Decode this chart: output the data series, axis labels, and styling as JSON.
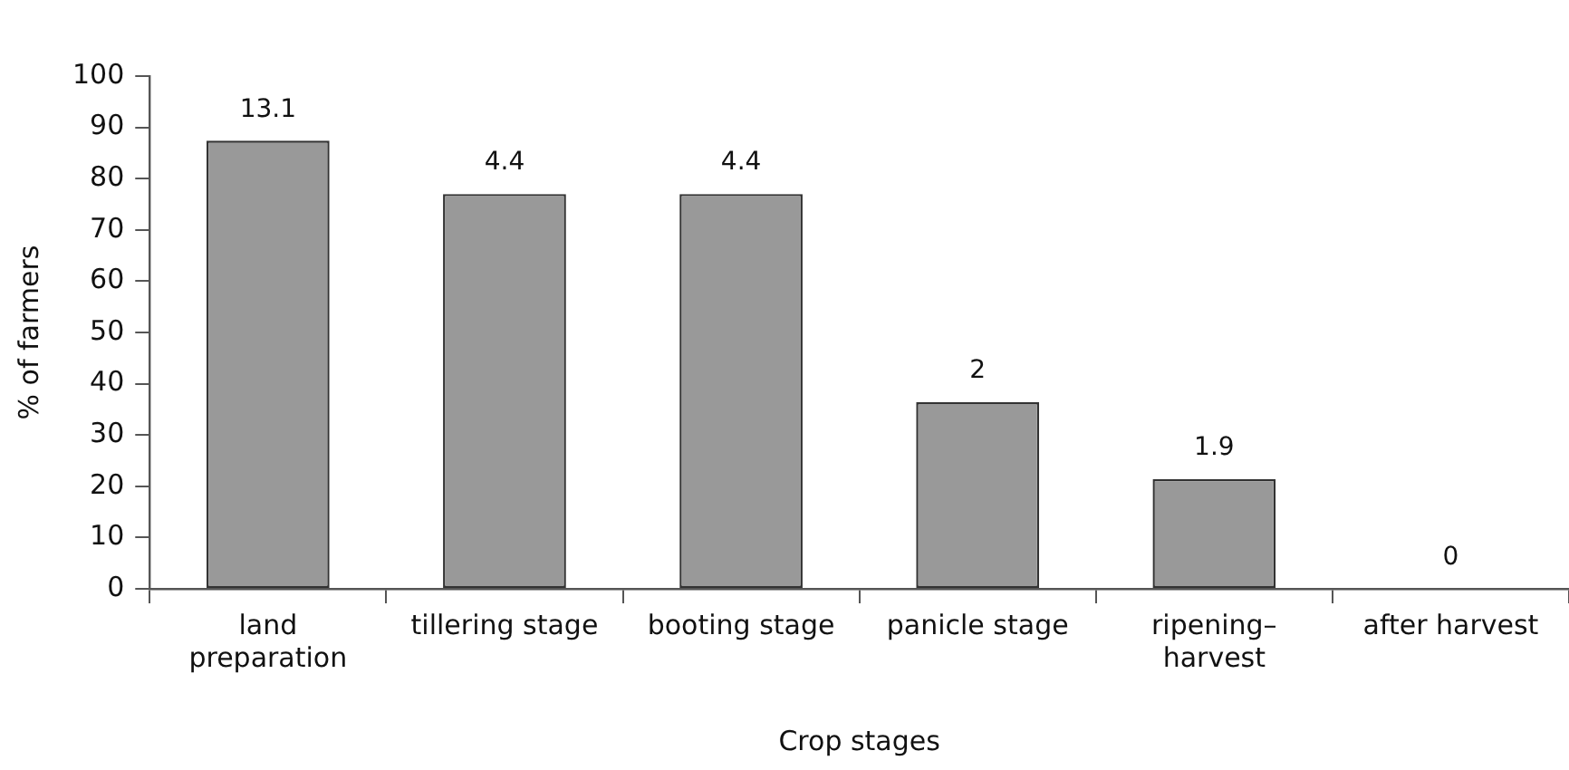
{
  "chart_data": {
    "type": "bar",
    "xlabel": "Crop stages",
    "ylabel": "% of farmers",
    "categories": [
      "land preparation",
      "tillering stage",
      "booting stage",
      "panicle stage",
      "ripening–harvest",
      "after harvest"
    ],
    "values": [
      87.4,
      77,
      77,
      36.4,
      21.4,
      0
    ],
    "annotations": [
      {
        "text": "13.1",
        "x": "land preparation",
        "y": 87.4
      },
      {
        "text": "4.4",
        "x": "tillering stage",
        "y": 77
      },
      {
        "text": "4.4",
        "x": "booting stage",
        "y": 77
      },
      {
        "text": "2",
        "x": "panicle stage",
        "y": 36.4
      },
      {
        "text": "1.9",
        "x": "ripening–harvest",
        "y": 21.4
      },
      {
        "text": "0",
        "x": "after harvest",
        "y": 0
      }
    ],
    "color": "#999999",
    "ylim": [
      0,
      100
    ],
    "yticks": [
      0,
      10,
      20,
      30,
      40,
      50,
      60,
      70,
      80,
      90,
      100
    ],
    "legend": false
  }
}
